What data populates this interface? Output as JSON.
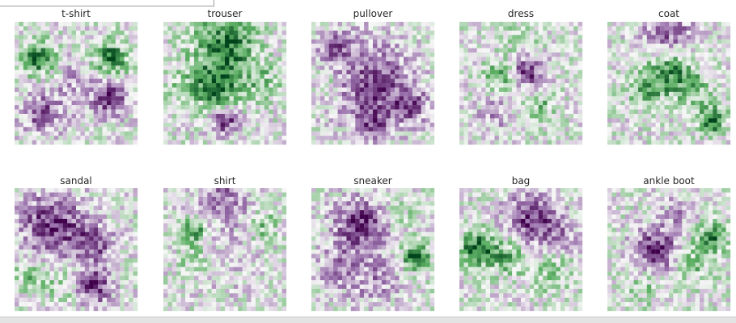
{
  "chart_data": {
    "type": "heatmap",
    "grid": "off",
    "colormap": "PRGn",
    "colors": {
      "negative": "#40004b",
      "neutral": "#f7f7f7",
      "positive": "#00441b"
    },
    "value_range": [
      -1,
      1
    ],
    "panels": [
      {
        "title": "t-shirt"
      },
      {
        "title": "trouser"
      },
      {
        "title": "pullover"
      },
      {
        "title": "dress"
      },
      {
        "title": "coat"
      },
      {
        "title": "sandal"
      },
      {
        "title": "shirt"
      },
      {
        "title": "sneaker"
      },
      {
        "title": "bag"
      },
      {
        "title": "ankle boot"
      }
    ]
  }
}
